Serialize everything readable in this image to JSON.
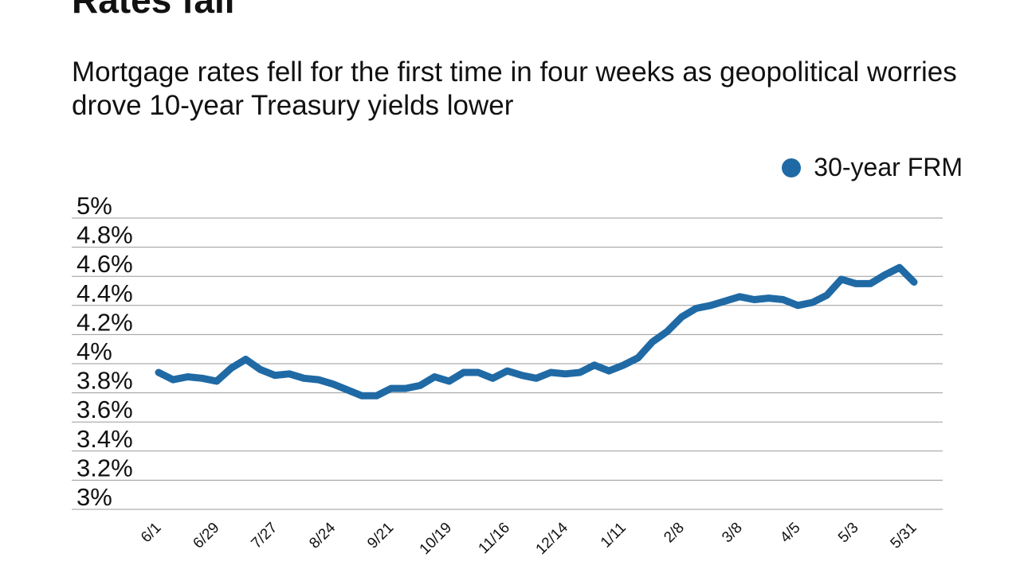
{
  "chart_data": {
    "type": "line",
    "title": "Rates fall",
    "subtitle": "Mortgage rates fell for the first time in four weeks as geopolitical worries drove 10-year Treasury yields lower",
    "ylim": [
      3,
      5
    ],
    "yticks": [
      5,
      4.8,
      4.6,
      4.4,
      4.2,
      4,
      3.8,
      3.6,
      3.4,
      3.2,
      3
    ],
    "ytick_labels": [
      "5%",
      "4.8%",
      "4.6%",
      "4.4%",
      "4.2%",
      "4%",
      "3.8%",
      "3.6%",
      "3.4%",
      "3.2%",
      "3%"
    ],
    "x_tick_labels": [
      "6/1",
      "6/29",
      "7/27",
      "8/24",
      "9/21",
      "10/19",
      "11/16",
      "12/14",
      "1/11",
      "2/8",
      "3/8",
      "4/5",
      "5/3",
      "5/31"
    ],
    "grid": true,
    "legend": "top-right",
    "series": [
      {
        "name": "30-year FRM",
        "color": "#1f6aa5",
        "values": [
          3.94,
          3.89,
          3.91,
          3.9,
          3.88,
          3.97,
          4.03,
          3.96,
          3.92,
          3.93,
          3.9,
          3.89,
          3.86,
          3.82,
          3.78,
          3.78,
          3.83,
          3.83,
          3.85,
          3.91,
          3.88,
          3.94,
          3.94,
          3.9,
          3.95,
          3.92,
          3.9,
          3.94,
          3.93,
          3.94,
          3.99,
          3.95,
          3.99,
          4.04,
          4.15,
          4.22,
          4.32,
          4.38,
          4.4,
          4.43,
          4.46,
          4.44,
          4.45,
          4.44,
          4.4,
          4.42,
          4.47,
          4.58,
          4.55,
          4.55,
          4.61,
          4.66,
          4.56
        ]
      }
    ]
  }
}
